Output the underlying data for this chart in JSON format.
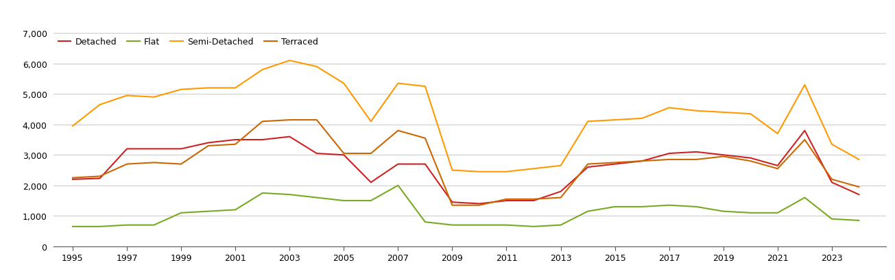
{
  "years": [
    1995,
    1996,
    1997,
    1998,
    1999,
    2000,
    2001,
    2002,
    2003,
    2004,
    2005,
    2006,
    2007,
    2008,
    2009,
    2010,
    2011,
    2012,
    2013,
    2014,
    2015,
    2016,
    2017,
    2018,
    2019,
    2020,
    2021,
    2022,
    2023,
    2024
  ],
  "detached": [
    2200,
    2230,
    3200,
    3200,
    3200,
    3400,
    3500,
    3500,
    3600,
    3050,
    3000,
    2100,
    2700,
    2700,
    1450,
    1400,
    1500,
    1500,
    1800,
    2600,
    2700,
    2800,
    3050,
    3100,
    3000,
    2900,
    2650,
    3800,
    2100,
    1700
  ],
  "flat": [
    650,
    650,
    700,
    700,
    1100,
    1150,
    1200,
    1750,
    1700,
    1600,
    1500,
    1500,
    2000,
    800,
    700,
    700,
    700,
    650,
    700,
    1150,
    1300,
    1300,
    1350,
    1300,
    1150,
    1100,
    1100,
    1600,
    900,
    850
  ],
  "semi_detached": [
    3950,
    4650,
    4950,
    4900,
    5150,
    5200,
    5200,
    5800,
    6100,
    5900,
    5350,
    4100,
    5350,
    5250,
    2500,
    2450,
    2450,
    2550,
    2650,
    4100,
    4150,
    4200,
    4550,
    4450,
    4400,
    4350,
    3700,
    5300,
    3350,
    2850
  ],
  "terraced": [
    2250,
    2300,
    2700,
    2750,
    2700,
    3300,
    3350,
    4100,
    4150,
    4150,
    3050,
    3050,
    3800,
    3550,
    1350,
    1350,
    1550,
    1550,
    1600,
    2700,
    2750,
    2800,
    2850,
    2850,
    2950,
    2800,
    2550,
    3500,
    2200,
    1950
  ],
  "colors": {
    "detached": "#cc2222",
    "flat": "#77aa22",
    "semi_detached": "#ff9900",
    "terraced": "#cc6600"
  },
  "ylim": [
    0,
    7000
  ],
  "yticks": [
    0,
    1000,
    2000,
    3000,
    4000,
    5000,
    6000,
    7000
  ],
  "xtick_years": [
    1995,
    1997,
    1999,
    2001,
    2003,
    2005,
    2007,
    2009,
    2011,
    2013,
    2015,
    2017,
    2019,
    2021,
    2023
  ],
  "xlim_left": 1994.3,
  "xlim_right": 2025.0,
  "background_color": "#ffffff",
  "grid_color": "#cccccc",
  "line_width": 1.5,
  "tick_fontsize": 9,
  "legend_fontsize": 9
}
